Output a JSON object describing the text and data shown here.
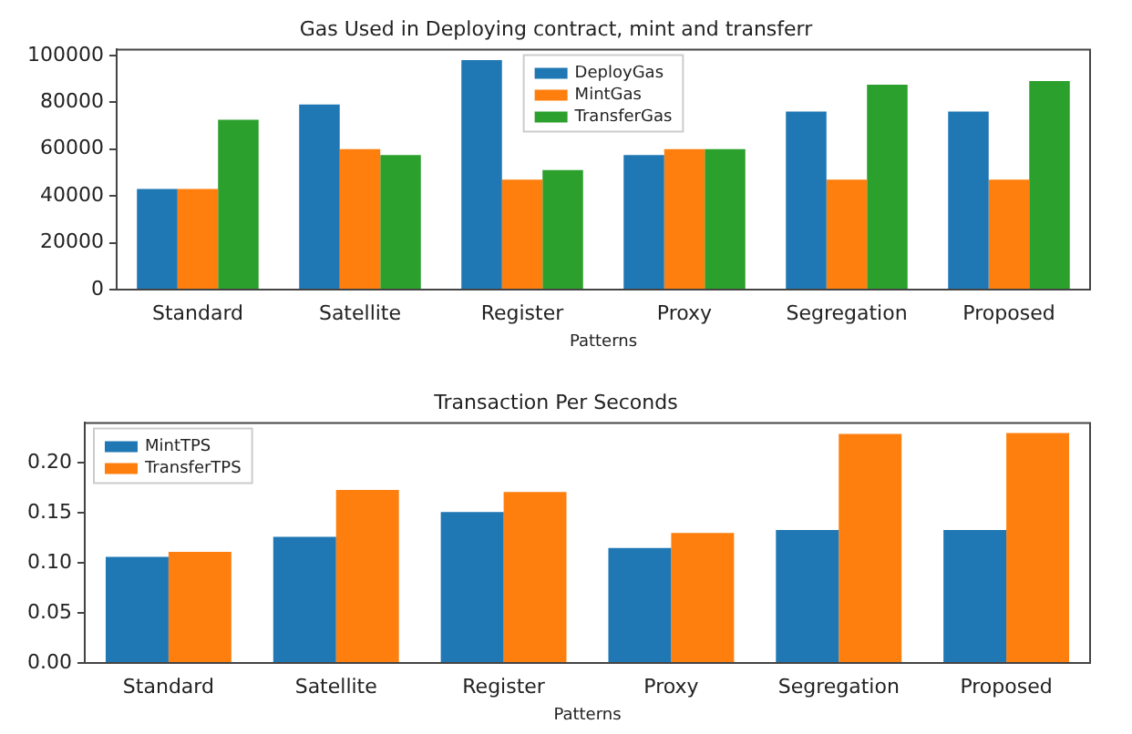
{
  "chart_data": [
    {
      "type": "bar",
      "title": "Gas Used in Deploying contract, mint and transferr",
      "xlabel": "Patterns",
      "categories": [
        "Standard",
        "Satellite",
        "Register",
        "Proxy",
        "Segregation",
        "Proposed"
      ],
      "series": [
        {
          "name": "DeployGas",
          "color": "#1f77b4",
          "values": [
            43000,
            79000,
            98000,
            57500,
            76000,
            76000
          ]
        },
        {
          "name": "MintGas",
          "color": "#ff7f0e",
          "values": [
            43000,
            60000,
            47000,
            60000,
            47000,
            47000
          ]
        },
        {
          "name": "TransferGas",
          "color": "#2ca02c",
          "values": [
            72500,
            57500,
            51000,
            60000,
            87500,
            89000
          ]
        }
      ],
      "ylim": [
        0,
        102500
      ],
      "yticks": [
        0,
        20000,
        40000,
        60000,
        80000,
        100000
      ],
      "grid": false,
      "legend": "top"
    },
    {
      "type": "bar",
      "title": "Transaction Per Seconds",
      "xlabel": "Patterns",
      "categories": [
        "Standard",
        "Satellite",
        "Register",
        "Proxy",
        "Segregation",
        "Proposed"
      ],
      "series": [
        {
          "name": "MintTPS",
          "color": "#1f77b4",
          "values": [
            0.106,
            0.126,
            0.151,
            0.115,
            0.133,
            0.133
          ]
        },
        {
          "name": "TransferTPS",
          "color": "#ff7f0e",
          "values": [
            0.111,
            0.173,
            0.171,
            0.13,
            0.229,
            0.23
          ]
        }
      ],
      "ylim": [
        0,
        0.24
      ],
      "yticks": [
        {
          "value": 0,
          "label": "0.00"
        },
        {
          "value": 0.05,
          "label": "0.05"
        },
        {
          "value": 0.1,
          "label": "0.10"
        },
        {
          "value": 0.15,
          "label": "0.15"
        },
        {
          "value": 0.2,
          "label": "0.20"
        }
      ],
      "grid": false,
      "legend": "top left"
    }
  ]
}
